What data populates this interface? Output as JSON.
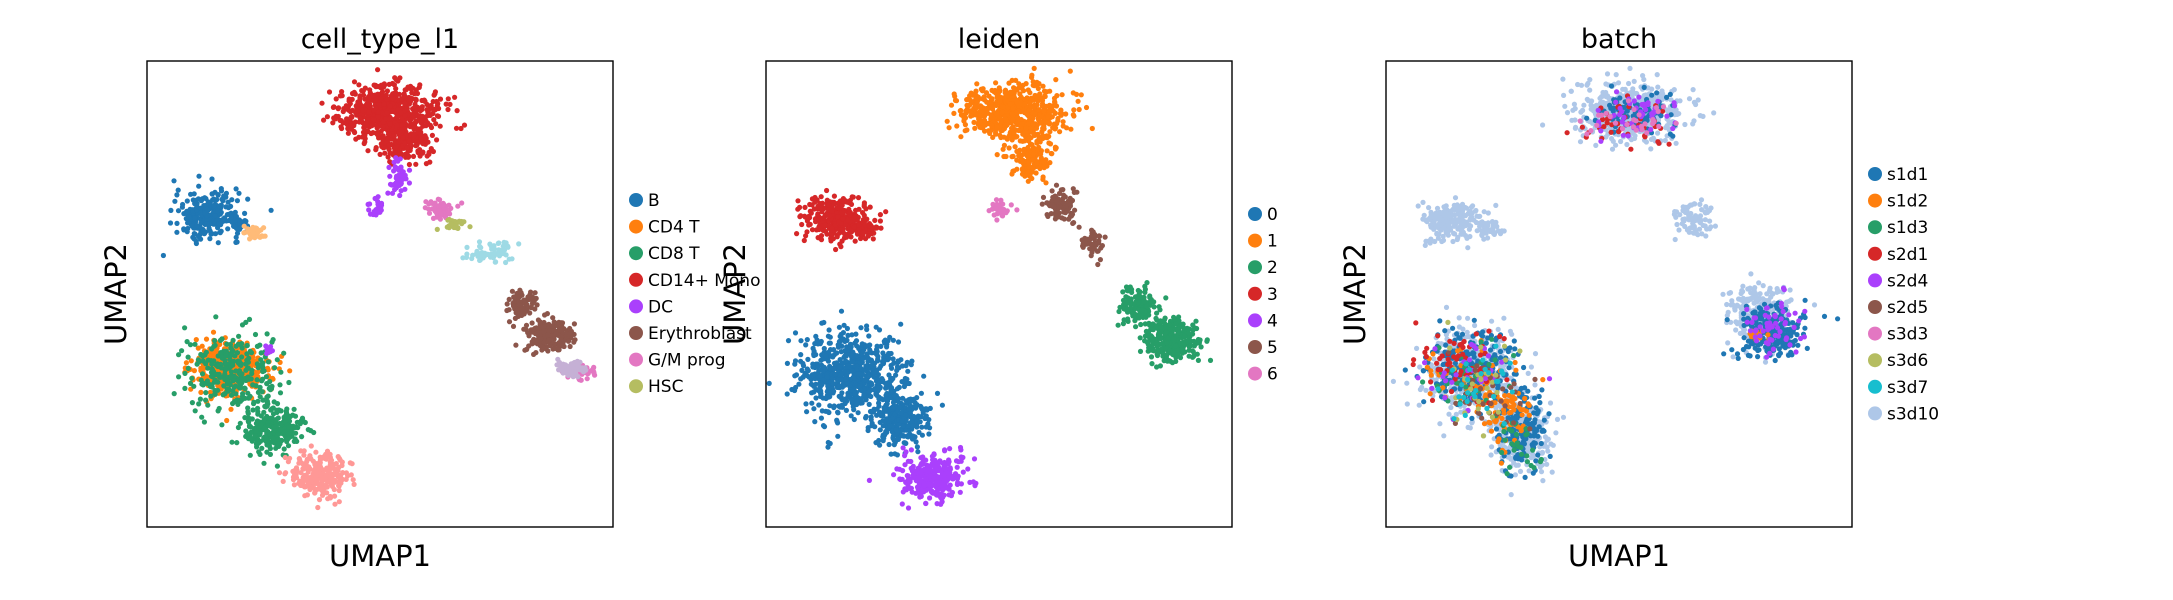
{
  "chart_data": [
    {
      "type": "scatter",
      "title": "cell_type_l1",
      "xlabel": "UMAP1",
      "ylabel": "UMAP2",
      "xlim": [
        0,
        10
      ],
      "ylim": [
        0,
        10
      ],
      "grid": false,
      "legend_position": "right",
      "legend": [
        {
          "name": "B",
          "color": "#1f77b4"
        },
        {
          "name": "CD4 T",
          "color": "#ff7f0e"
        },
        {
          "name": "CD8 T",
          "color": "#279e68"
        },
        {
          "name": "CD14+ Mono",
          "color": "#d62728"
        },
        {
          "name": "DC",
          "color": "#aa40fc"
        },
        {
          "name": "Erythroblast",
          "color": "#8c564b"
        },
        {
          "name": "G/M prog",
          "color": "#e377c2"
        },
        {
          "name": "HSC",
          "color": "#b5bd61"
        }
      ],
      "series": [
        {
          "name": "B",
          "color": "#1f77b4",
          "blobs": [
            {
              "cx": 1.3,
              "cy": 6.7,
              "rx": 0.7,
              "ry": 0.5,
              "n": 260
            },
            {
              "cx": 2.0,
              "cy": 6.5,
              "rx": 0.2,
              "ry": 0.15,
              "n": 30
            }
          ]
        },
        {
          "name": "CD4 T",
          "color": "#ff7f0e",
          "blobs": [
            {
              "cx": 1.8,
              "cy": 3.4,
              "rx": 0.8,
              "ry": 0.55,
              "n": 420
            }
          ]
        },
        {
          "name": "CD8 T",
          "color": "#279e68",
          "blobs": [
            {
              "cx": 1.8,
              "cy": 3.3,
              "rx": 1.0,
              "ry": 0.8,
              "n": 280
            },
            {
              "cx": 2.7,
              "cy": 2.1,
              "rx": 0.6,
              "ry": 0.5,
              "n": 260
            }
          ]
        },
        {
          "name": "CD14+ Mono",
          "color": "#d62728",
          "blobs": [
            {
              "cx": 5.2,
              "cy": 8.9,
              "rx": 1.1,
              "ry": 0.55,
              "n": 600
            },
            {
              "cx": 5.5,
              "cy": 8.2,
              "rx": 0.6,
              "ry": 0.4,
              "n": 150
            }
          ]
        },
        {
          "name": "DC",
          "color": "#aa40fc",
          "blobs": [
            {
              "cx": 5.4,
              "cy": 7.5,
              "rx": 0.2,
              "ry": 0.35,
              "n": 50
            },
            {
              "cx": 4.9,
              "cy": 6.8,
              "rx": 0.2,
              "ry": 0.2,
              "n": 20
            },
            {
              "cx": 2.6,
              "cy": 3.8,
              "rx": 0.08,
              "ry": 0.12,
              "n": 10
            }
          ]
        },
        {
          "name": "Erythroblast",
          "color": "#8c564b",
          "blobs": [
            {
              "cx": 8.0,
              "cy": 4.8,
              "rx": 0.3,
              "ry": 0.3,
              "n": 80
            },
            {
              "cx": 8.6,
              "cy": 4.1,
              "rx": 0.5,
              "ry": 0.35,
              "n": 200
            }
          ]
        },
        {
          "name": "G/M prog",
          "color": "#e377c2",
          "blobs": [
            {
              "cx": 6.3,
              "cy": 6.8,
              "rx": 0.3,
              "ry": 0.25,
              "n": 60
            },
            {
              "cx": 9.3,
              "cy": 3.3,
              "rx": 0.3,
              "ry": 0.15,
              "n": 40
            }
          ]
        },
        {
          "name": "HSC",
          "color": "#b5bd61",
          "blobs": [
            {
              "cx": 6.6,
              "cy": 6.5,
              "rx": 0.25,
              "ry": 0.12,
              "n": 30
            }
          ]
        },
        {
          "name": "",
          "color": "#9edae5",
          "blobs": [
            {
              "cx": 7.3,
              "cy": 5.9,
              "rx": 0.5,
              "ry": 0.25,
              "n": 60
            }
          ]
        },
        {
          "name": "",
          "color": "#c5b0d5",
          "blobs": [
            {
              "cx": 9.1,
              "cy": 3.4,
              "rx": 0.35,
              "ry": 0.2,
              "n": 60
            }
          ]
        },
        {
          "name": "",
          "color": "#ffbb78",
          "blobs": [
            {
              "cx": 2.3,
              "cy": 6.3,
              "rx": 0.2,
              "ry": 0.15,
              "n": 40
            }
          ]
        },
        {
          "name": "",
          "color": "#ff9896",
          "blobs": [
            {
              "cx": 3.7,
              "cy": 1.1,
              "rx": 0.6,
              "ry": 0.45,
              "n": 260
            }
          ]
        }
      ]
    },
    {
      "type": "scatter",
      "title": "leiden",
      "xlabel": "",
      "ylabel": "UMAP2",
      "xlim": [
        0,
        10
      ],
      "ylim": [
        0,
        10
      ],
      "grid": false,
      "legend_position": "right",
      "legend": [
        {
          "name": "0",
          "color": "#1f77b4"
        },
        {
          "name": "1",
          "color": "#ff7f0e"
        },
        {
          "name": "2",
          "color": "#279e68"
        },
        {
          "name": "3",
          "color": "#d62728"
        },
        {
          "name": "4",
          "color": "#aa40fc"
        },
        {
          "name": "5",
          "color": "#8c564b"
        },
        {
          "name": "6",
          "color": "#e377c2"
        }
      ],
      "series": [
        {
          "name": "0",
          "color": "#1f77b4",
          "blobs": [
            {
              "cx": 1.8,
              "cy": 3.3,
              "rx": 1.1,
              "ry": 0.9,
              "n": 650
            },
            {
              "cx": 2.9,
              "cy": 2.3,
              "rx": 0.6,
              "ry": 0.55,
              "n": 280
            }
          ]
        },
        {
          "name": "1",
          "color": "#ff7f0e",
          "blobs": [
            {
              "cx": 5.3,
              "cy": 8.9,
              "rx": 1.1,
              "ry": 0.6,
              "n": 620
            },
            {
              "cx": 5.7,
              "cy": 7.9,
              "rx": 0.4,
              "ry": 0.4,
              "n": 150
            }
          ]
        },
        {
          "name": "2",
          "color": "#279e68",
          "blobs": [
            {
              "cx": 8.0,
              "cy": 4.8,
              "rx": 0.4,
              "ry": 0.4,
              "n": 120
            },
            {
              "cx": 8.7,
              "cy": 4.0,
              "rx": 0.55,
              "ry": 0.45,
              "n": 300
            }
          ]
        },
        {
          "name": "3",
          "color": "#d62728",
          "blobs": [
            {
              "cx": 1.5,
              "cy": 6.6,
              "rx": 0.7,
              "ry": 0.45,
              "n": 280
            },
            {
              "cx": 2.1,
              "cy": 6.4,
              "rx": 0.3,
              "ry": 0.2,
              "n": 50
            }
          ]
        },
        {
          "name": "4",
          "color": "#aa40fc",
          "blobs": [
            {
              "cx": 3.6,
              "cy": 1.1,
              "rx": 0.65,
              "ry": 0.5,
              "n": 280
            }
          ]
        },
        {
          "name": "5",
          "color": "#8c564b",
          "blobs": [
            {
              "cx": 6.3,
              "cy": 6.9,
              "rx": 0.35,
              "ry": 0.35,
              "n": 80
            },
            {
              "cx": 7.0,
              "cy": 6.1,
              "rx": 0.3,
              "ry": 0.3,
              "n": 40
            }
          ]
        },
        {
          "name": "6",
          "color": "#e377c2",
          "blobs": [
            {
              "cx": 5.0,
              "cy": 6.8,
              "rx": 0.25,
              "ry": 0.2,
              "n": 30
            }
          ]
        }
      ]
    },
    {
      "type": "scatter",
      "title": "batch",
      "xlabel": "UMAP1",
      "ylabel": "UMAP2",
      "xlim": [
        0,
        10
      ],
      "ylim": [
        0,
        10
      ],
      "grid": false,
      "legend_position": "right",
      "legend": [
        {
          "name": "s1d1",
          "color": "#1f77b4"
        },
        {
          "name": "s1d2",
          "color": "#ff7f0e"
        },
        {
          "name": "s1d3",
          "color": "#279e68"
        },
        {
          "name": "s2d1",
          "color": "#d62728"
        },
        {
          "name": "s2d4",
          "color": "#aa40fc"
        },
        {
          "name": "s2d5",
          "color": "#8c564b"
        },
        {
          "name": "s3d3",
          "color": "#e377c2"
        },
        {
          "name": "s3d6",
          "color": "#b5bd61"
        },
        {
          "name": "s3d7",
          "color": "#17becf"
        },
        {
          "name": "s3d10",
          "color": "#aec7e8"
        }
      ],
      "series": [
        {
          "name": "s3d10",
          "color": "#aec7e8",
          "blobs": [
            {
              "cx": 5.2,
              "cy": 8.9,
              "rx": 1.1,
              "ry": 0.6,
              "n": 560
            },
            {
              "cx": 1.4,
              "cy": 6.6,
              "rx": 0.6,
              "ry": 0.4,
              "n": 200
            },
            {
              "cx": 2.2,
              "cy": 6.4,
              "rx": 0.3,
              "ry": 0.2,
              "n": 40
            },
            {
              "cx": 1.8,
              "cy": 3.3,
              "rx": 1.0,
              "ry": 0.9,
              "n": 450
            },
            {
              "cx": 2.9,
              "cy": 2.0,
              "rx": 0.6,
              "ry": 0.8,
              "n": 300
            },
            {
              "cx": 6.6,
              "cy": 6.6,
              "rx": 0.5,
              "ry": 0.5,
              "n": 80
            },
            {
              "cx": 8.0,
              "cy": 4.5,
              "rx": 0.7,
              "ry": 0.7,
              "n": 220
            }
          ]
        },
        {
          "name": "s1d1",
          "color": "#1f77b4",
          "blobs": [
            {
              "cx": 1.8,
              "cy": 3.4,
              "rx": 0.9,
              "ry": 0.8,
              "n": 220
            },
            {
              "cx": 2.9,
              "cy": 2.0,
              "rx": 0.5,
              "ry": 0.8,
              "n": 140
            },
            {
              "cx": 8.3,
              "cy": 4.2,
              "rx": 0.7,
              "ry": 0.6,
              "n": 220
            },
            {
              "cx": 5.3,
              "cy": 8.9,
              "rx": 0.9,
              "ry": 0.45,
              "n": 90
            }
          ]
        },
        {
          "name": "s1d2",
          "color": "#ff7f0e",
          "blobs": [
            {
              "cx": 2.6,
              "cy": 2.5,
              "rx": 0.6,
              "ry": 0.9,
              "n": 80
            },
            {
              "cx": 1.6,
              "cy": 3.3,
              "rx": 0.8,
              "ry": 0.6,
              "n": 40
            },
            {
              "cx": 8.0,
              "cy": 4.1,
              "rx": 0.2,
              "ry": 0.2,
              "n": 15
            }
          ]
        },
        {
          "name": "s1d3",
          "color": "#279e68",
          "blobs": [
            {
              "cx": 1.8,
              "cy": 3.3,
              "rx": 0.9,
              "ry": 0.8,
              "n": 40
            },
            {
              "cx": 2.8,
              "cy": 1.8,
              "rx": 0.5,
              "ry": 0.6,
              "n": 30
            }
          ]
        },
        {
          "name": "s2d1",
          "color": "#d62728",
          "blobs": [
            {
              "cx": 1.6,
              "cy": 3.5,
              "rx": 0.9,
              "ry": 0.8,
              "n": 60
            },
            {
              "cx": 5.2,
              "cy": 8.6,
              "rx": 1.0,
              "ry": 0.5,
              "n": 40
            }
          ]
        },
        {
          "name": "s2d4",
          "color": "#aa40fc",
          "blobs": [
            {
              "cx": 8.3,
              "cy": 4.3,
              "rx": 0.6,
              "ry": 0.6,
              "n": 60
            },
            {
              "cx": 5.3,
              "cy": 8.9,
              "rx": 1.0,
              "ry": 0.5,
              "n": 50
            },
            {
              "cx": 1.8,
              "cy": 3.3,
              "rx": 0.9,
              "ry": 0.8,
              "n": 30
            }
          ]
        },
        {
          "name": "s2d5",
          "color": "#8c564b",
          "blobs": [
            {
              "cx": 2.3,
              "cy": 2.8,
              "rx": 0.8,
              "ry": 1.0,
              "n": 40
            }
          ]
        },
        {
          "name": "s3d3",
          "color": "#e377c2",
          "blobs": [
            {
              "cx": 5.4,
              "cy": 8.8,
              "rx": 1.0,
              "ry": 0.5,
              "n": 30
            }
          ]
        },
        {
          "name": "s3d6",
          "color": "#b5bd61",
          "blobs": [
            {
              "cx": 2.0,
              "cy": 3.0,
              "rx": 0.8,
              "ry": 0.9,
              "n": 30
            }
          ]
        },
        {
          "name": "s3d7",
          "color": "#17becf",
          "blobs": [
            {
              "cx": 2.0,
              "cy": 3.0,
              "rx": 0.9,
              "ry": 0.9,
              "n": 30
            }
          ]
        }
      ]
    }
  ]
}
